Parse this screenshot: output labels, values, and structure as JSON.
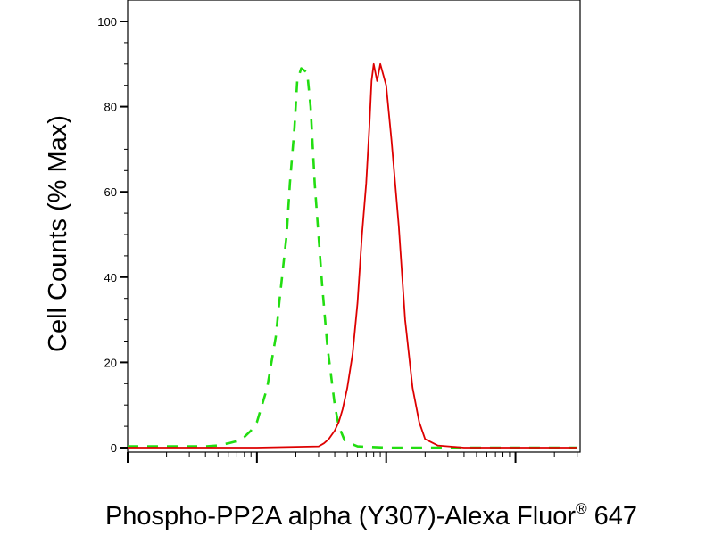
{
  "chart_data": {
    "type": "line",
    "title": "",
    "ylabel": "Cell Counts (% Max)",
    "xlabel": {
      "main": "Phospho-PP2A alpha (Y307)-Alexa Fluor",
      "superscript": "®",
      "suffix": " 647"
    },
    "x_scale": "log",
    "ylim": [
      0,
      100
    ],
    "y_ticks": [
      0,
      20,
      40,
      60,
      80,
      100
    ],
    "grid": false,
    "series": [
      {
        "style": "dashed",
        "color": "#22dd11",
        "x": [
          100,
          300,
          400,
          500,
          600,
          700,
          800,
          900,
          1000,
          1200,
          1400,
          1500,
          1700,
          1800,
          1950,
          2050,
          2200,
          2450,
          2600,
          2800,
          3200,
          3500,
          4000,
          4300,
          4800,
          6000,
          10000,
          30000,
          100000,
          300000
        ],
        "y": [
          0.3,
          0.3,
          0.3,
          0.5,
          1,
          1.5,
          2.5,
          4,
          6,
          14,
          26,
          35,
          50,
          62,
          75,
          86,
          89,
          88,
          80,
          62,
          38,
          24,
          10,
          5,
          1.5,
          0.3,
          0,
          0,
          0,
          0
        ]
      },
      {
        "style": "solid",
        "color": "#dd0000",
        "x": [
          100,
          1000,
          3000,
          3300,
          3600,
          4000,
          4300,
          4600,
          5000,
          5500,
          6000,
          6500,
          7000,
          7400,
          7700,
          8000,
          8500,
          9000,
          10000,
          11000,
          12500,
          14000,
          16000,
          18000,
          20000,
          25000,
          40000,
          100000,
          300000
        ],
        "y": [
          0,
          0,
          0.3,
          1,
          2,
          4,
          6,
          9,
          14,
          22,
          34,
          50,
          62,
          75,
          86,
          90,
          86,
          90,
          85,
          72,
          52,
          30,
          14,
          6,
          2,
          0.5,
          0,
          0,
          0
        ]
      }
    ]
  }
}
